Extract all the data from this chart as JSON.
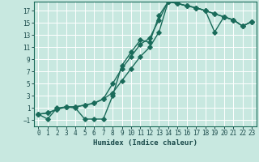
{
  "xlabel": "Humidex (Indice chaleur)",
  "background_color": "#c8e8e0",
  "grid_color": "#ffffff",
  "line_color": "#1a6b5a",
  "xlim": [
    -0.5,
    23.5
  ],
  "ylim": [
    -2,
    18.5
  ],
  "xticks": [
    0,
    1,
    2,
    3,
    4,
    5,
    6,
    7,
    8,
    9,
    10,
    11,
    12,
    13,
    14,
    15,
    16,
    17,
    18,
    19,
    20,
    21,
    22,
    23
  ],
  "yticks": [
    -1,
    1,
    3,
    5,
    7,
    9,
    11,
    13,
    15,
    17
  ],
  "curve1_x": [
    0,
    1,
    2,
    3,
    4,
    5,
    6,
    7,
    8,
    9,
    10,
    11,
    12,
    13,
    14,
    15,
    16,
    17,
    18,
    19,
    20,
    21,
    22,
    23
  ],
  "curve1_y": [
    0,
    -0.8,
    1.0,
    1.2,
    1.0,
    -0.8,
    -0.8,
    -0.8,
    3.0,
    8.0,
    10.2,
    12.2,
    11.8,
    16.2,
    18.5,
    18.2,
    17.8,
    17.5,
    17.0,
    16.5,
    16.0,
    15.5,
    14.5,
    15.2
  ],
  "curve2_x": [
    0,
    1,
    2,
    3,
    4,
    5,
    6,
    7,
    8,
    9,
    10,
    11,
    12,
    13,
    14,
    15,
    16,
    17,
    18,
    19,
    20,
    21,
    22,
    23
  ],
  "curve2_y": [
    0,
    0.2,
    0.8,
    1.2,
    1.2,
    1.5,
    1.8,
    2.5,
    3.5,
    5.5,
    7.5,
    9.5,
    11.0,
    13.5,
    18.5,
    18.2,
    17.8,
    17.5,
    17.0,
    16.5,
    16.0,
    15.5,
    14.5,
    15.2
  ],
  "curve3_x": [
    0,
    1,
    2,
    3,
    4,
    5,
    6,
    7,
    8,
    9,
    10,
    11,
    12,
    13,
    14,
    15,
    16,
    17,
    18,
    19,
    20,
    21,
    22,
    23
  ],
  "curve3_y": [
    0,
    0.2,
    0.8,
    1.2,
    1.2,
    1.5,
    1.8,
    2.5,
    5.0,
    7.5,
    9.5,
    11.5,
    12.5,
    15.5,
    18.5,
    18.2,
    17.8,
    17.5,
    17.0,
    13.5,
    16.0,
    15.5,
    14.5,
    15.2
  ],
  "marker": "D",
  "markersize": 2.8,
  "linewidth": 1.0
}
